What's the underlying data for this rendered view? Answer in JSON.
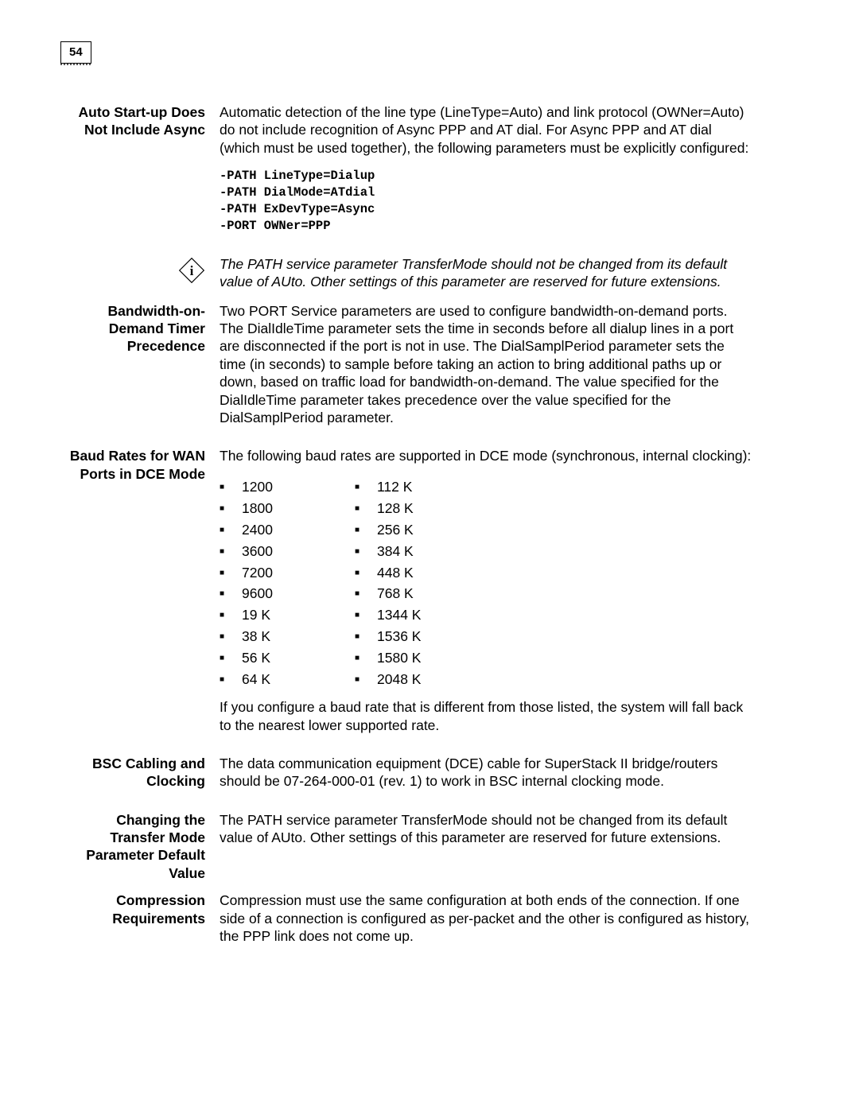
{
  "page_number": "54",
  "sections": {
    "auto_startup": {
      "heading": "Auto Start-up Does Not Include Async",
      "para": "Automatic detection of the line type (LineType=Auto) and link protocol (OWNer=Auto) do not include recognition of Async PPP and AT dial. For Async PPP and AT dial (which must be used together), the following parameters must be explicitly configured:",
      "code": "-PATH LineType=Dialup\n-PATH DialMode=ATdial\n-PATH ExDevType=Async\n-PORT OWNer=PPP"
    },
    "note": {
      "text": "The PATH service parameter TransferMode should not be changed from its default value of AUto. Other settings of this parameter are reserved for future extensions."
    },
    "bandwidth": {
      "heading": "Bandwidth-on-Demand Timer Precedence",
      "para": "Two PORT Service parameters are used to configure bandwidth-on-demand ports. The DialIdleTime parameter sets the time in seconds before all dialup lines in a port are disconnected if the port is not in use. The DialSamplPeriod parameter sets the time (in seconds) to sample before taking an action to bring additional paths up or down, based on traffic load for bandwidth-on-demand. The value specified for the DialIdleTime parameter takes precedence over the value specified for the DialSamplPeriod parameter."
    },
    "baud": {
      "heading": "Baud Rates for WAN Ports in DCE Mode",
      "intro": "The following baud rates are supported in DCE mode (synchronous, internal clocking):",
      "col1": [
        "1200",
        "1800",
        "2400",
        "3600",
        "7200",
        "9600",
        "19 K",
        "38 K",
        "56 K",
        "64 K"
      ],
      "col2": [
        "112 K",
        "128 K",
        "256 K",
        "384 K",
        "448 K",
        "768 K",
        "1344 K",
        "1536 K",
        "1580 K",
        "2048 K"
      ],
      "outro": "If you configure a baud rate that is different from those listed, the system will fall back to the nearest lower supported rate."
    },
    "bsc": {
      "heading": "BSC Cabling and Clocking",
      "para": "The data communication equipment (DCE) cable for SuperStack II bridge/routers should be 07-264-000-01 (rev. 1) to work in BSC internal clocking mode."
    },
    "transfer": {
      "heading": "Changing the Transfer Mode Parameter Default Value",
      "para": "The PATH service parameter TransferMode should not be changed from its default value of AUto. Other settings of this parameter are reserved for future extensions."
    },
    "compression": {
      "heading": "Compression Requirements",
      "para": "Compression must use the same configuration at both ends of the connection. If one side of a connection is configured as per-packet and the other is configured as history, the PPP link does not come up."
    }
  }
}
